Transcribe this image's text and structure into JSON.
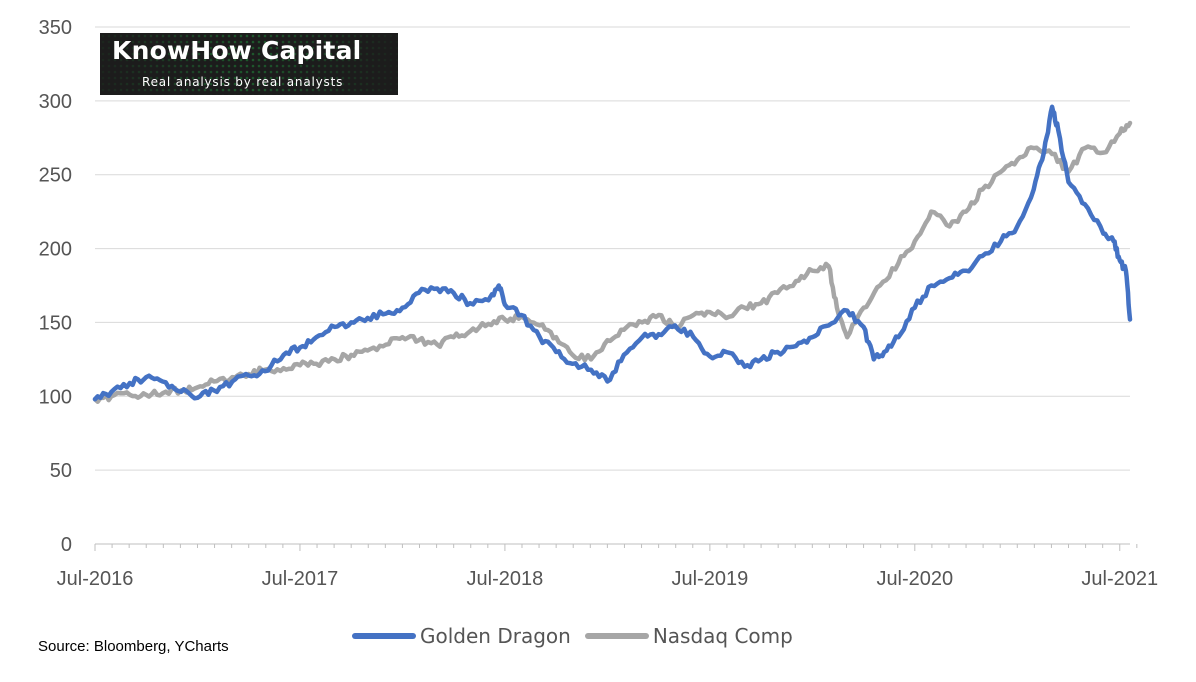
{
  "logo": {
    "name": "KnowHow Capital",
    "tagline": "Real analysis by real analysts"
  },
  "source": "Source: Bloomberg, YCharts",
  "chart_data": {
    "type": "line",
    "title": "",
    "xlabel": "",
    "ylabel": "",
    "ylim": [
      0,
      350
    ],
    "xlim": [
      2016.5,
      2021.55
    ],
    "yticks": [
      "0",
      "50",
      "100",
      "150",
      "200",
      "250",
      "300",
      "350"
    ],
    "xticks": [
      {
        "label": "Jul-2016",
        "value": 2016.5
      },
      {
        "label": "Jul-2017",
        "value": 2017.5
      },
      {
        "label": "Jul-2018",
        "value": 2018.5
      },
      {
        "label": "Jul-2019",
        "value": 2019.5
      },
      {
        "label": "Jul-2020",
        "value": 2020.5
      },
      {
        "label": "Jul-2021",
        "value": 2021.5
      }
    ],
    "grid": "horizontal",
    "legend_position": "bottom",
    "series": [
      {
        "name": "Golden Dragon",
        "color": "#4472c4",
        "points": [
          [
            2016.5,
            98
          ],
          [
            2016.58,
            103
          ],
          [
            2016.67,
            109
          ],
          [
            2016.75,
            113
          ],
          [
            2016.83,
            110
          ],
          [
            2016.92,
            103
          ],
          [
            2017.0,
            99
          ],
          [
            2017.08,
            104
          ],
          [
            2017.17,
            110
          ],
          [
            2017.25,
            114
          ],
          [
            2017.33,
            117
          ],
          [
            2017.42,
            128
          ],
          [
            2017.5,
            133
          ],
          [
            2017.58,
            140
          ],
          [
            2017.67,
            147
          ],
          [
            2017.75,
            150
          ],
          [
            2017.83,
            153
          ],
          [
            2017.92,
            156
          ],
          [
            2018.0,
            160
          ],
          [
            2018.08,
            170
          ],
          [
            2018.17,
            173
          ],
          [
            2018.25,
            170
          ],
          [
            2018.33,
            163
          ],
          [
            2018.42,
            165
          ],
          [
            2018.47,
            175
          ],
          [
            2018.5,
            162
          ],
          [
            2018.58,
            155
          ],
          [
            2018.67,
            140
          ],
          [
            2018.75,
            130
          ],
          [
            2018.83,
            122
          ],
          [
            2018.92,
            118
          ],
          [
            2019.0,
            110
          ],
          [
            2019.08,
            128
          ],
          [
            2019.17,
            140
          ],
          [
            2019.25,
            142
          ],
          [
            2019.33,
            148
          ],
          [
            2019.42,
            140
          ],
          [
            2019.5,
            127
          ],
          [
            2019.58,
            130
          ],
          [
            2019.67,
            120
          ],
          [
            2019.75,
            125
          ],
          [
            2019.83,
            130
          ],
          [
            2019.92,
            134
          ],
          [
            2020.0,
            140
          ],
          [
            2020.08,
            148
          ],
          [
            2020.17,
            158
          ],
          [
            2020.25,
            147
          ],
          [
            2020.3,
            125
          ],
          [
            2020.35,
            130
          ],
          [
            2020.42,
            140
          ],
          [
            2020.5,
            160
          ],
          [
            2020.58,
            175
          ],
          [
            2020.67,
            180
          ],
          [
            2020.75,
            185
          ],
          [
            2020.83,
            195
          ],
          [
            2020.92,
            205
          ],
          [
            2021.0,
            215
          ],
          [
            2021.08,
            240
          ],
          [
            2021.13,
            265
          ],
          [
            2021.17,
            296
          ],
          [
            2021.2,
            280
          ],
          [
            2021.25,
            245
          ],
          [
            2021.33,
            230
          ],
          [
            2021.42,
            210
          ],
          [
            2021.47,
            205
          ],
          [
            2021.5,
            192
          ],
          [
            2021.53,
            185
          ],
          [
            2021.55,
            152
          ]
        ]
      },
      {
        "name": "Nasdaq Comp",
        "color": "#a6a6a6",
        "points": [
          [
            2016.5,
            98
          ],
          [
            2016.58,
            100
          ],
          [
            2016.67,
            101
          ],
          [
            2016.75,
            101
          ],
          [
            2016.83,
            102
          ],
          [
            2016.92,
            104
          ],
          [
            2017.0,
            106
          ],
          [
            2017.08,
            110
          ],
          [
            2017.17,
            113
          ],
          [
            2017.25,
            115
          ],
          [
            2017.33,
            118
          ],
          [
            2017.42,
            119
          ],
          [
            2017.5,
            121
          ],
          [
            2017.58,
            122
          ],
          [
            2017.67,
            125
          ],
          [
            2017.75,
            128
          ],
          [
            2017.83,
            131
          ],
          [
            2017.92,
            135
          ],
          [
            2018.0,
            140
          ],
          [
            2018.08,
            138
          ],
          [
            2018.17,
            135
          ],
          [
            2018.25,
            140
          ],
          [
            2018.33,
            144
          ],
          [
            2018.42,
            149
          ],
          [
            2018.5,
            152
          ],
          [
            2018.58,
            154
          ],
          [
            2018.67,
            148
          ],
          [
            2018.75,
            140
          ],
          [
            2018.83,
            128
          ],
          [
            2018.92,
            125
          ],
          [
            2019.0,
            138
          ],
          [
            2019.08,
            145
          ],
          [
            2019.17,
            150
          ],
          [
            2019.25,
            155
          ],
          [
            2019.33,
            147
          ],
          [
            2019.42,
            155
          ],
          [
            2019.5,
            157
          ],
          [
            2019.58,
            153
          ],
          [
            2019.67,
            160
          ],
          [
            2019.75,
            163
          ],
          [
            2019.83,
            170
          ],
          [
            2019.92,
            178
          ],
          [
            2020.0,
            185
          ],
          [
            2020.08,
            188
          ],
          [
            2020.12,
            160
          ],
          [
            2020.17,
            140
          ],
          [
            2020.25,
            160
          ],
          [
            2020.33,
            175
          ],
          [
            2020.42,
            190
          ],
          [
            2020.5,
            205
          ],
          [
            2020.58,
            225
          ],
          [
            2020.67,
            215
          ],
          [
            2020.75,
            225
          ],
          [
            2020.83,
            240
          ],
          [
            2020.92,
            252
          ],
          [
            2021.0,
            260
          ],
          [
            2021.08,
            268
          ],
          [
            2021.17,
            264
          ],
          [
            2021.25,
            252
          ],
          [
            2021.33,
            268
          ],
          [
            2021.42,
            265
          ],
          [
            2021.5,
            278
          ],
          [
            2021.55,
            285
          ]
        ]
      }
    ]
  }
}
